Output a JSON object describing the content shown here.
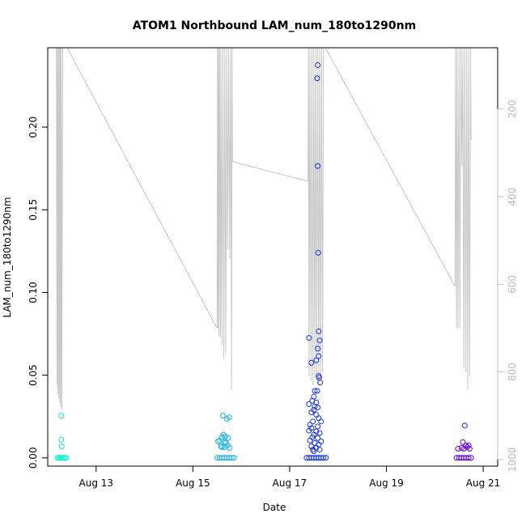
{
  "chart_data": {
    "type": "scatter",
    "title": "ATOM1 Northbound LAM_num_180to1290nm",
    "xlabel": "Date",
    "ylabel": "LAM_num_180to1290nm",
    "x_tick_labels": [
      "Aug 13",
      "Aug 15",
      "Aug 17",
      "Aug 19",
      "Aug 21"
    ],
    "x_tick_days": [
      13,
      15,
      17,
      19,
      21
    ],
    "xlim_days": [
      12.0,
      21.3
    ],
    "ylim": [
      -0.005,
      0.248
    ],
    "y_ticks": [
      0.0,
      0.05,
      0.1,
      0.15,
      0.2
    ],
    "y_tick_labels": [
      "0.00",
      "0.05",
      "0.10",
      "0.15",
      "0.20"
    ],
    "y2_ticks": [
      200,
      400,
      600,
      800,
      1000
    ],
    "y2_tick_labels": [
      "200",
      "400",
      "600",
      "800",
      "1000"
    ],
    "y2lim_reversed": [
      1015,
      60
    ],
    "y2_color": "#bebebe",
    "grid": false,
    "legend": "none",
    "series": [
      {
        "color": "#00f5c5",
        "points": [
          [
            12.2,
            0.0
          ],
          [
            12.23,
            0.0
          ],
          [
            12.26,
            0.0
          ],
          [
            12.29,
            0.0
          ],
          [
            12.32,
            0.0
          ],
          [
            12.35,
            0.0
          ],
          [
            12.38,
            0.0
          ],
          [
            12.28,
            0.0255
          ],
          [
            12.28,
            0.011
          ],
          [
            12.29,
            0.007
          ]
        ]
      },
      {
        "color": "#19b4e9",
        "points": [
          [
            15.5,
            0.0
          ],
          [
            15.55,
            0.0
          ],
          [
            15.6,
            0.0
          ],
          [
            15.65,
            0.0
          ],
          [
            15.7,
            0.0
          ],
          [
            15.75,
            0.0
          ],
          [
            15.8,
            0.0
          ],
          [
            15.85,
            0.0
          ],
          [
            15.52,
            0.01
          ],
          [
            15.55,
            0.0105
          ],
          [
            15.58,
            0.007
          ],
          [
            15.6,
            0.0065
          ],
          [
            15.62,
            0.0255
          ],
          [
            15.63,
            0.014
          ],
          [
            15.65,
            0.0065
          ],
          [
            15.67,
            0.013
          ],
          [
            15.68,
            0.009
          ],
          [
            15.7,
            0.0235
          ],
          [
            15.72,
            0.0075
          ],
          [
            15.73,
            0.012
          ],
          [
            15.75,
            0.0245
          ],
          [
            15.76,
            0.006
          ],
          [
            15.6,
            0.0125
          ],
          [
            15.66,
            0.0095
          ]
        ]
      },
      {
        "color": "#1733eb",
        "points": [
          [
            17.35,
            0.0
          ],
          [
            17.4,
            0.0
          ],
          [
            17.45,
            0.0
          ],
          [
            17.5,
            0.0
          ],
          [
            17.55,
            0.0
          ],
          [
            17.6,
            0.0
          ],
          [
            17.65,
            0.0
          ],
          [
            17.7,
            0.0
          ],
          [
            17.75,
            0.0
          ],
          [
            17.58,
            0.2375
          ],
          [
            17.57,
            0.2295
          ],
          [
            17.58,
            0.1765
          ],
          [
            17.59,
            0.124
          ],
          [
            17.4,
            0.0725
          ],
          [
            17.6,
            0.0765
          ],
          [
            17.62,
            0.071
          ],
          [
            17.58,
            0.066
          ],
          [
            17.6,
            0.0615
          ],
          [
            17.45,
            0.0575
          ],
          [
            17.55,
            0.059
          ],
          [
            17.6,
            0.0495
          ],
          [
            17.61,
            0.0485
          ],
          [
            17.63,
            0.0455
          ],
          [
            17.52,
            0.0405
          ],
          [
            17.57,
            0.0405
          ],
          [
            17.5,
            0.037
          ],
          [
            17.47,
            0.0345
          ],
          [
            17.55,
            0.0335
          ],
          [
            17.4,
            0.0325
          ],
          [
            17.52,
            0.031
          ],
          [
            17.58,
            0.0305
          ],
          [
            17.5,
            0.029
          ],
          [
            17.45,
            0.0275
          ],
          [
            17.55,
            0.026
          ],
          [
            17.6,
            0.024
          ],
          [
            17.48,
            0.022
          ],
          [
            17.65,
            0.022
          ],
          [
            17.42,
            0.02
          ],
          [
            17.58,
            0.019
          ],
          [
            17.45,
            0.018
          ],
          [
            17.4,
            0.0165
          ],
          [
            17.55,
            0.016
          ],
          [
            17.62,
            0.015
          ],
          [
            17.5,
            0.014
          ],
          [
            17.47,
            0.0125
          ],
          [
            17.58,
            0.012
          ],
          [
            17.42,
            0.0105
          ],
          [
            17.65,
            0.01
          ],
          [
            17.52,
            0.009
          ],
          [
            17.6,
            0.008
          ],
          [
            17.45,
            0.007
          ],
          [
            17.55,
            0.006
          ],
          [
            17.48,
            0.005
          ],
          [
            17.62,
            0.005
          ],
          [
            17.5,
            0.004
          ]
        ]
      },
      {
        "color": "#5d06ea",
        "points": [
          [
            20.45,
            0.0
          ],
          [
            20.5,
            0.0
          ],
          [
            20.55,
            0.0
          ],
          [
            20.6,
            0.0
          ],
          [
            20.65,
            0.0
          ],
          [
            20.7,
            0.0
          ],
          [
            20.75,
            0.0
          ],
          [
            20.48,
            0.0055
          ],
          [
            20.55,
            0.006
          ],
          [
            20.58,
            0.0095
          ],
          [
            20.62,
            0.0195
          ],
          [
            20.64,
            0.0075
          ],
          [
            20.67,
            0.0065
          ],
          [
            20.7,
            0.0075
          ],
          [
            20.6,
            0.0055
          ],
          [
            20.72,
            0.0055
          ]
        ]
      }
    ],
    "secondary_series": {
      "color": "#c8c8c8",
      "axis": "right",
      "points": [
        [
          12.18,
          60
        ],
        [
          12.19,
          830
        ],
        [
          12.2,
          60
        ],
        [
          12.21,
          850
        ],
        [
          12.22,
          60
        ],
        [
          12.23,
          860
        ],
        [
          12.24,
          60
        ],
        [
          12.25,
          870
        ],
        [
          12.26,
          60
        ],
        [
          12.27,
          880
        ],
        [
          12.28,
          60
        ],
        [
          12.29,
          885
        ],
        [
          12.31,
          60
        ],
        [
          12.33,
          60
        ],
        [
          12.4,
          60
        ],
        [
          15.5,
          700
        ],
        [
          15.51,
          60
        ],
        [
          15.52,
          700
        ],
        [
          15.53,
          60
        ],
        [
          15.54,
          720
        ],
        [
          15.55,
          60
        ],
        [
          15.57,
          720
        ],
        [
          15.58,
          60
        ],
        [
          15.6,
          740
        ],
        [
          15.62,
          60
        ],
        [
          15.64,
          770
        ],
        [
          15.66,
          60
        ],
        [
          15.68,
          760
        ],
        [
          15.7,
          60
        ],
        [
          15.72,
          520
        ],
        [
          15.74,
          60
        ],
        [
          15.76,
          540
        ],
        [
          15.78,
          60
        ],
        [
          15.8,
          840
        ],
        [
          15.81,
          60
        ],
        [
          15.82,
          320
        ],
        [
          17.38,
          365
        ],
        [
          17.39,
          60
        ],
        [
          17.4,
          810
        ],
        [
          17.42,
          60
        ],
        [
          17.44,
          820
        ],
        [
          17.46,
          60
        ],
        [
          17.48,
          830
        ],
        [
          17.5,
          60
        ],
        [
          17.52,
          820
        ],
        [
          17.54,
          60
        ],
        [
          17.56,
          820
        ],
        [
          17.58,
          60
        ],
        [
          17.6,
          830
        ],
        [
          17.62,
          60
        ],
        [
          17.64,
          810
        ],
        [
          17.66,
          60
        ],
        [
          17.68,
          800
        ],
        [
          17.7,
          60
        ],
        [
          17.72,
          60
        ],
        [
          17.74,
          60
        ],
        [
          20.42,
          605
        ],
        [
          20.43,
          60
        ],
        [
          20.45,
          700
        ],
        [
          20.46,
          60
        ],
        [
          20.48,
          700
        ],
        [
          20.5,
          60
        ],
        [
          20.52,
          700
        ],
        [
          20.54,
          60
        ],
        [
          20.56,
          330
        ],
        [
          20.58,
          60
        ],
        [
          20.6,
          790
        ],
        [
          20.62,
          60
        ],
        [
          20.64,
          800
        ],
        [
          20.66,
          60
        ],
        [
          20.68,
          840
        ],
        [
          20.7,
          60
        ],
        [
          20.72,
          810
        ],
        [
          20.74,
          60
        ],
        [
          20.75,
          270
        ]
      ]
    }
  }
}
